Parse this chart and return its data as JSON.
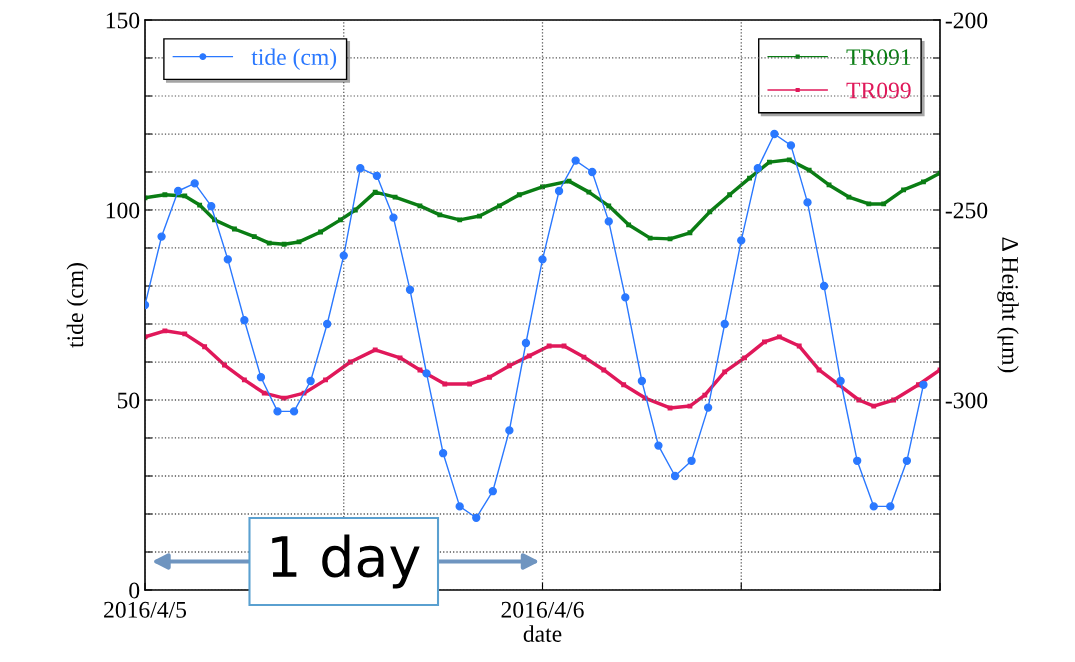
{
  "chart_data": {
    "type": "line",
    "xlabel": "date",
    "ylabel": "tide (cm)",
    "y2label": "Δ Height (μm)",
    "xlim": [
      "2016-04-05T00:00",
      "2016-04-07T00:00"
    ],
    "xticks": [
      {
        "value": "2016-04-05T00:00",
        "label": "2016/4/5"
      },
      {
        "value": "2016-04-05T12:00",
        "label": null
      },
      {
        "value": "2016-04-06T00:00",
        "label": "2016/4/6"
      },
      {
        "value": "2016-04-06T12:00",
        "label": null
      },
      {
        "value": "2016-04-07T00:00",
        "label": null
      }
    ],
    "ylim": [
      0,
      150
    ],
    "yticks": [
      0,
      {
        "value": 10,
        "label": null
      },
      {
        "value": 20,
        "label": null
      },
      {
        "value": 30,
        "label": null
      },
      {
        "value": 40,
        "label": null
      },
      50,
      {
        "value": 60,
        "label": null
      },
      {
        "value": 70,
        "label": null
      },
      {
        "value": 80,
        "label": null
      },
      {
        "value": 90,
        "label": null
      },
      100,
      {
        "value": 110,
        "label": null
      },
      {
        "value": 120,
        "label": null
      },
      {
        "value": 130,
        "label": null
      },
      {
        "value": 140,
        "label": null
      },
      150
    ],
    "y2lim": [
      -350,
      -200
    ],
    "y2ticks": [
      {
        "value": -350,
        "label": null
      },
      {
        "value": -340,
        "label": null
      },
      {
        "value": -330,
        "label": null
      },
      {
        "value": -320,
        "label": null
      },
      {
        "value": -310,
        "label": null
      },
      -300,
      {
        "value": -290,
        "label": null
      },
      {
        "value": -280,
        "label": null
      },
      {
        "value": -270,
        "label": null
      },
      {
        "value": -260,
        "label": null
      },
      -250,
      {
        "value": -240,
        "label": null
      },
      {
        "value": -230,
        "label": null
      },
      {
        "value": -220,
        "label": null
      },
      {
        "value": -210,
        "label": null
      },
      -200
    ],
    "grid": true,
    "legend": "top",
    "line_style": "solid",
    "series": [
      {
        "name": "tide (cm)",
        "color": "#2a78ff",
        "marker": "circle",
        "x": [
          "2016-04-05T00:00",
          "2016-04-05T01:00",
          "2016-04-05T02:00",
          "2016-04-05T03:00",
          "2016-04-05T04:00",
          "2016-04-05T05:00",
          "2016-04-05T06:00",
          "2016-04-05T07:00",
          "2016-04-05T08:00",
          "2016-04-05T09:00",
          "2016-04-05T10:00",
          "2016-04-05T11:00",
          "2016-04-05T12:00",
          "2016-04-05T13:00",
          "2016-04-05T14:00",
          "2016-04-05T15:00",
          "2016-04-05T16:00",
          "2016-04-05T17:00",
          "2016-04-05T18:00",
          "2016-04-05T19:00",
          "2016-04-05T20:00",
          "2016-04-05T21:00",
          "2016-04-05T22:00",
          "2016-04-05T23:00",
          "2016-04-06T00:00",
          "2016-04-06T01:00",
          "2016-04-06T02:00",
          "2016-04-06T03:00",
          "2016-04-06T04:00",
          "2016-04-06T05:00",
          "2016-04-06T06:00",
          "2016-04-06T07:00",
          "2016-04-06T08:00",
          "2016-04-06T09:00",
          "2016-04-06T10:00",
          "2016-04-06T11:00",
          "2016-04-06T12:00",
          "2016-04-06T13:00",
          "2016-04-06T14:00",
          "2016-04-06T15:00",
          "2016-04-06T16:00",
          "2016-04-06T17:00",
          "2016-04-06T18:00",
          "2016-04-06T19:00",
          "2016-04-06T20:00",
          "2016-04-06T21:00",
          "2016-04-06T22:00",
          "2016-04-06T23:00"
        ],
        "values": [
          75,
          93,
          105,
          107,
          101,
          87,
          71,
          56,
          47,
          47,
          55,
          70,
          88,
          111,
          109,
          98,
          79,
          57,
          36,
          22,
          19,
          26,
          42,
          65,
          87,
          105,
          113,
          110,
          97,
          77,
          55,
          38,
          30,
          34,
          48,
          70,
          92,
          111,
          120,
          117,
          102,
          80,
          55,
          34,
          22,
          22,
          34,
          54
        ]
      },
      {
        "name": "TR091",
        "color": "#0a7d14",
        "marker": "square",
        "axis": "y2",
        "x": [
          "2016-04-05T00:00",
          "2016-04-05T01:12",
          "2016-04-05T02:24",
          "2016-04-05T03:18",
          "2016-04-05T04:12",
          "2016-04-05T05:24",
          "2016-04-05T06:36",
          "2016-04-05T07:30",
          "2016-04-05T08:24",
          "2016-04-05T09:18",
          "2016-04-05T10:36",
          "2016-04-05T11:48",
          "2016-04-05T12:42",
          "2016-04-05T13:54",
          "2016-04-05T15:06",
          "2016-04-05T16:36",
          "2016-04-05T17:48",
          "2016-04-05T19:00",
          "2016-04-05T20:12",
          "2016-04-05T21:24",
          "2016-04-05T22:36",
          "2016-04-06T00:00",
          "2016-04-06T01:36",
          "2016-04-06T02:48",
          "2016-04-06T04:00",
          "2016-04-06T05:12",
          "2016-04-06T06:30",
          "2016-04-06T07:42",
          "2016-04-06T08:54",
          "2016-04-06T10:06",
          "2016-04-06T11:18",
          "2016-04-06T12:30",
          "2016-04-06T13:42",
          "2016-04-06T14:54",
          "2016-04-06T16:06",
          "2016-04-06T17:18",
          "2016-04-06T18:30",
          "2016-04-06T19:42",
          "2016-04-06T20:36",
          "2016-04-06T21:48",
          "2016-04-06T23:00",
          "2016-04-07T00:00"
        ],
        "values": [
          -246.8,
          -246,
          -246.3,
          -248.7,
          -252.6,
          -255,
          -257,
          -258.7,
          -259,
          -258.4,
          -255.8,
          -252.6,
          -250,
          -245.3,
          -246.6,
          -248.9,
          -251.3,
          -252.6,
          -251.6,
          -248.9,
          -246,
          -243.9,
          -242.4,
          -245.3,
          -248.9,
          -253.9,
          -257.4,
          -257.6,
          -256,
          -250.5,
          -246,
          -241.6,
          -237.4,
          -236.8,
          -239.5,
          -243.4,
          -246.6,
          -248.4,
          -248.4,
          -244.7,
          -242.6,
          -240.3
        ]
      },
      {
        "name": "TR099",
        "color": "#e0185a",
        "marker": "square",
        "axis": "y2",
        "x": [
          "2016-04-05T00:00",
          "2016-04-05T01:12",
          "2016-04-05T02:24",
          "2016-04-05T03:36",
          "2016-04-05T04:48",
          "2016-04-05T06:00",
          "2016-04-05T07:12",
          "2016-04-05T08:24",
          "2016-04-05T09:36",
          "2016-04-05T10:54",
          "2016-04-05T12:24",
          "2016-04-05T13:54",
          "2016-04-05T15:24",
          "2016-04-05T16:36",
          "2016-04-05T18:06",
          "2016-04-05T19:36",
          "2016-04-05T20:48",
          "2016-04-05T22:00",
          "2016-04-05T23:12",
          "2016-04-06T00:24",
          "2016-04-06T01:18",
          "2016-04-06T02:30",
          "2016-04-06T03:42",
          "2016-04-06T04:54",
          "2016-04-06T06:12",
          "2016-04-06T07:42",
          "2016-04-06T08:54",
          "2016-04-06T09:48",
          "2016-04-06T11:00",
          "2016-04-06T12:12",
          "2016-04-06T13:24",
          "2016-04-06T14:18",
          "2016-04-06T15:30",
          "2016-04-06T16:42",
          "2016-04-06T17:54",
          "2016-04-06T19:06",
          "2016-04-06T20:00",
          "2016-04-06T21:12",
          "2016-04-06T22:42",
          "2016-04-07T00:00"
        ],
        "values": [
          -283.4,
          -281.8,
          -282.6,
          -286,
          -290.8,
          -294.7,
          -298.2,
          -299.5,
          -298.2,
          -294.7,
          -290,
          -286.8,
          -288.9,
          -292.1,
          -295.8,
          -295.8,
          -294,
          -291,
          -288.4,
          -285.8,
          -285.8,
          -288.7,
          -292.1,
          -296,
          -299.5,
          -302.1,
          -301.6,
          -298.7,
          -292.6,
          -288.9,
          -284.7,
          -283.4,
          -285.8,
          -292.1,
          -296,
          -300,
          -301.6,
          -300,
          -296,
          -292.1
        ]
      }
    ],
    "annotations": [
      "1 day"
    ]
  }
}
